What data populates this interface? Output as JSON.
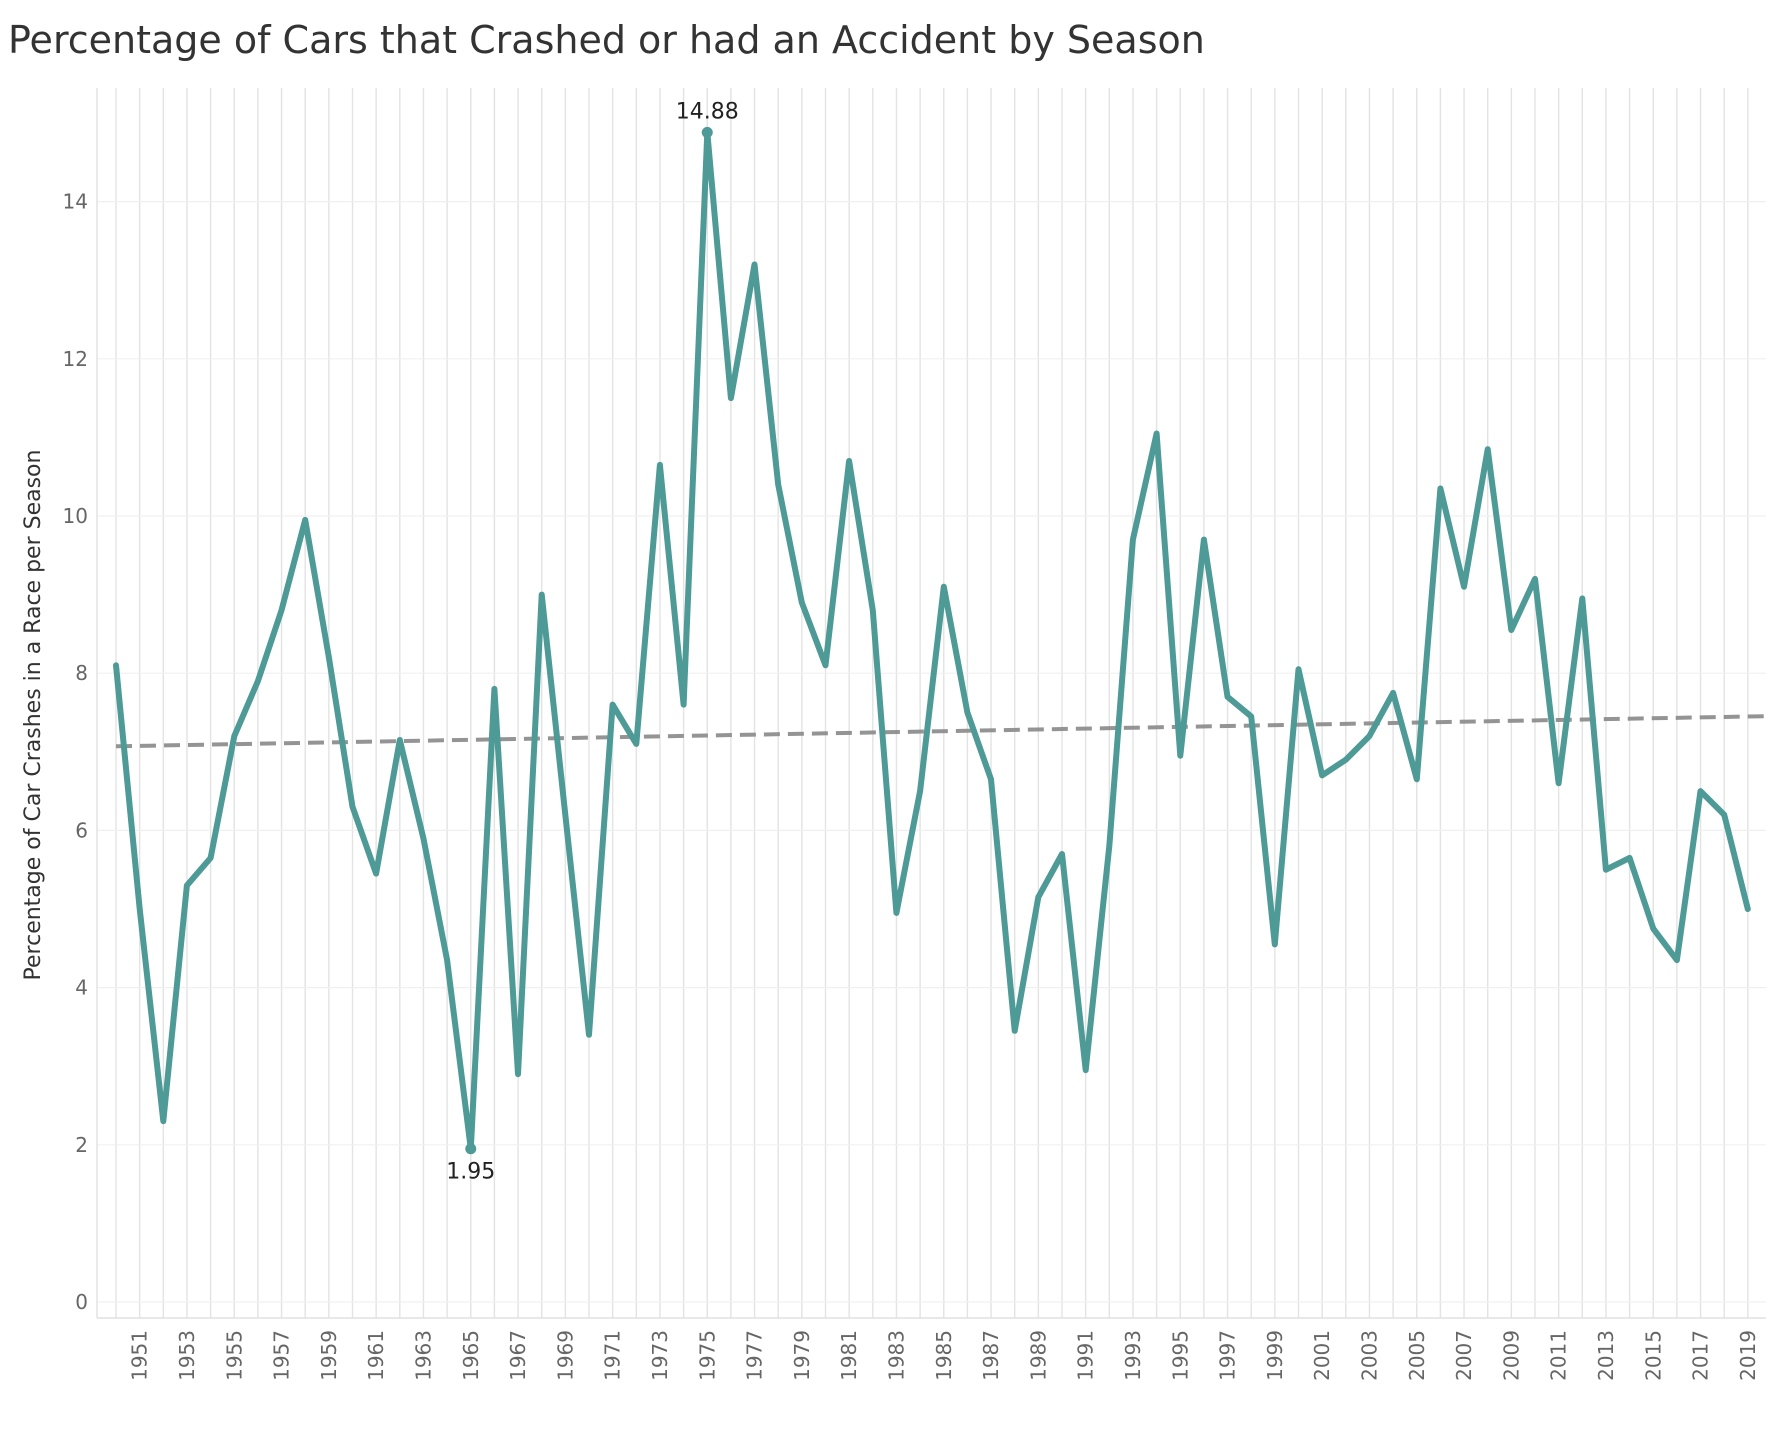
{
  "chart_data": {
    "type": "line",
    "title": "Percentage of Cars that Crashed or had an Accident by Season",
    "xlabel": "",
    "ylabel": "Percentage of Car Crashes in a Race per Season",
    "ylim": [
      0,
      15.5
    ],
    "yticks": [
      0,
      2,
      4,
      6,
      8,
      10,
      12,
      14
    ],
    "xlim": [
      1950,
      2021
    ],
    "xtick_labels": [
      "1951",
      "1953",
      "1955",
      "1957",
      "1959",
      "1961",
      "1963",
      "1965",
      "1967",
      "1969",
      "1971",
      "1973",
      "1975",
      "1977",
      "1979",
      "1981",
      "1983",
      "1985",
      "1987",
      "1989",
      "1991",
      "1993",
      "1995",
      "1997",
      "1999",
      "2001",
      "2003",
      "2005",
      "2007",
      "2009",
      "2011",
      "2013",
      "2015",
      "2017",
      "2019"
    ],
    "grid": "vertical",
    "series": [
      {
        "name": "",
        "color": "#4e9a96",
        "x": [
          1950,
          1951,
          1952,
          1953,
          1954,
          1955,
          1956,
          1957,
          1958,
          1959,
          1960,
          1961,
          1962,
          1963,
          1964,
          1965,
          1966,
          1967,
          1968,
          1969,
          1970,
          1971,
          1972,
          1973,
          1974,
          1975,
          1976,
          1977,
          1978,
          1979,
          1980,
          1981,
          1982,
          1983,
          1984,
          1985,
          1986,
          1987,
          1988,
          1989,
          1990,
          1991,
          1992,
          1993,
          1994,
          1995,
          1996,
          1997,
          1998,
          1999,
          2000,
          2001,
          2002,
          2003,
          2004,
          2005,
          2006,
          2007,
          2008,
          2009,
          2010,
          2011,
          2012,
          2013,
          2014,
          2015,
          2016,
          2017,
          2018,
          2019
        ],
        "values": [
          8.1,
          5.0,
          2.3,
          5.3,
          5.65,
          7.2,
          7.9,
          8.8,
          9.95,
          8.2,
          6.3,
          5.45,
          7.15,
          5.9,
          4.35,
          1.95,
          7.8,
          2.9,
          9.0,
          6.2,
          3.4,
          7.6,
          7.1,
          10.65,
          7.6,
          14.88,
          11.5,
          13.2,
          10.4,
          8.9,
          8.1,
          10.7,
          8.8,
          4.95,
          6.5,
          9.1,
          7.5,
          6.65,
          3.45,
          5.15,
          5.7,
          2.95,
          5.8,
          9.7,
          11.05,
          6.95,
          9.7,
          7.7,
          7.45,
          4.55,
          8.05,
          6.7,
          6.9,
          7.2,
          7.75,
          6.65,
          10.35,
          9.1,
          10.85,
          8.55,
          9.2,
          6.6,
          8.95,
          5.5,
          5.65,
          4.75,
          4.35,
          6.5,
          6.2,
          5.0
        ]
      }
    ],
    "trend_line": {
      "x": [
        1950,
        2021
      ],
      "values": [
        7.07,
        7.46
      ],
      "color": "#888888",
      "style": "dashed"
    },
    "annotations": [
      {
        "x": 1975,
        "value": 14.88,
        "text": "14.88",
        "position": "above"
      },
      {
        "x": 1965,
        "value": 1.95,
        "text": "1.95",
        "position": "below"
      }
    ]
  }
}
